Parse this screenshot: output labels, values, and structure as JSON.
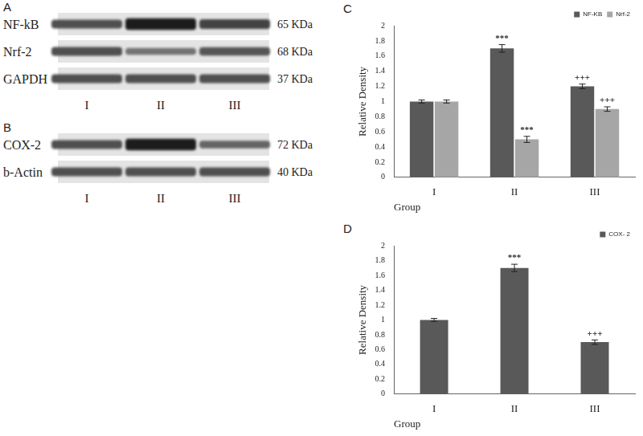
{
  "blots": [
    {
      "panel": "A",
      "lanes": [
        "I",
        "II",
        "III"
      ],
      "rows": [
        {
          "label": "NF-kB",
          "size": "65 KDa",
          "intensity": [
            1.0,
            1.7,
            1.2
          ]
        },
        {
          "label": "Nrf-2",
          "size": "68 KDa",
          "intensity": [
            1.0,
            0.5,
            0.9
          ]
        },
        {
          "label": "GAPDH",
          "size": "37 KDa",
          "intensity": [
            1.0,
            1.0,
            1.0
          ]
        }
      ]
    },
    {
      "panel": "B",
      "lanes": [
        "I",
        "II",
        "III"
      ],
      "rows": [
        {
          "label": "COX-2",
          "size": "72 KDa",
          "intensity": [
            1.0,
            1.7,
            0.7
          ]
        },
        {
          "label": "b-Actin",
          "size": "40 KDa",
          "intensity": [
            1.0,
            1.0,
            1.0
          ]
        }
      ]
    }
  ],
  "chart_data": [
    {
      "type": "bar",
      "panel": "C",
      "x_label": "Group",
      "y_label": "Relative Density",
      "categories": [
        "I",
        "II",
        "III"
      ],
      "series": [
        {
          "name": "NF-KB",
          "color": "#595959",
          "values": [
            1.0,
            1.7,
            1.2
          ],
          "errors": [
            0.02,
            0.05,
            0.03
          ],
          "marks": [
            null,
            "***",
            "+++"
          ]
        },
        {
          "name": "Nrf-2",
          "color": "#a6a6a6",
          "values": [
            1.0,
            0.5,
            0.9
          ],
          "errors": [
            0.02,
            0.04,
            0.03
          ],
          "marks": [
            null,
            "***",
            "+++"
          ]
        }
      ],
      "ylim": [
        0,
        2
      ],
      "yticks": [
        0,
        0.2,
        0.4,
        0.6,
        0.8,
        1,
        1.2,
        1.4,
        1.6,
        1.8,
        2
      ],
      "grid": false,
      "legend": "top-right"
    },
    {
      "type": "bar",
      "panel": "D",
      "x_label": "Group",
      "y_label": "Relative Density",
      "categories": [
        "I",
        "II",
        "III"
      ],
      "series": [
        {
          "name": "COX- 2",
          "color": "#595959",
          "values": [
            1.0,
            1.7,
            0.7
          ],
          "errors": [
            0.02,
            0.05,
            0.03
          ],
          "marks": [
            null,
            "***",
            "+++"
          ]
        }
      ],
      "ylim": [
        0,
        2
      ],
      "yticks": [
        0,
        0.2,
        0.4,
        0.6,
        0.8,
        1,
        1.2,
        1.4,
        1.6,
        1.8,
        2
      ],
      "grid": false,
      "legend": "top-right"
    }
  ]
}
